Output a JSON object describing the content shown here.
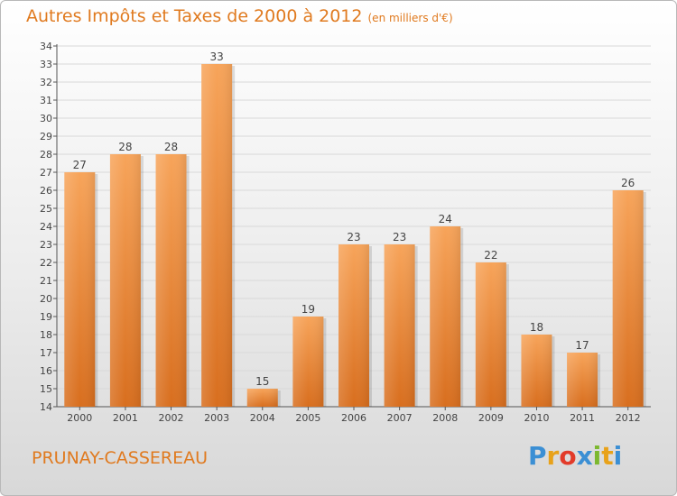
{
  "title": "Autres Impôts et Taxes de 2000 à 2012",
  "title_unit": "(en milliers d'€)",
  "commune": "PRUNAY-CASSEREAU",
  "logo": {
    "letters": [
      "P",
      "r",
      "o",
      "x",
      "i",
      "t",
      "i"
    ],
    "colors": [
      "#3b8fd4",
      "#e8a21a",
      "#e23b2a",
      "#3b8fd4",
      "#7cb82f",
      "#e8a21a",
      "#3b8fd4"
    ]
  },
  "colors": {
    "accent": "#e07a1f",
    "bar_top": "#f7a45a",
    "bar_bottom": "#d86e1e",
    "grid": "#d9d9d9",
    "axis": "#555555",
    "text": "#444444"
  },
  "chart_data": {
    "type": "bar",
    "title": "Autres Impôts et Taxes de 2000 à 2012",
    "subtitle": "(en milliers d'€)",
    "xlabel": "",
    "ylabel": "",
    "categories": [
      "2000",
      "2001",
      "2002",
      "2003",
      "2004",
      "2005",
      "2006",
      "2007",
      "2008",
      "2009",
      "2010",
      "2011",
      "2012"
    ],
    "values": [
      27,
      28,
      28,
      33,
      15,
      19,
      23,
      23,
      24,
      22,
      18,
      17,
      26
    ],
    "ylim": [
      14,
      34
    ],
    "yticks": [
      14,
      15,
      16,
      17,
      18,
      19,
      20,
      21,
      22,
      23,
      24,
      25,
      26,
      27,
      28,
      29,
      30,
      31,
      32,
      33,
      34
    ],
    "grid": true,
    "data_labels": true
  }
}
